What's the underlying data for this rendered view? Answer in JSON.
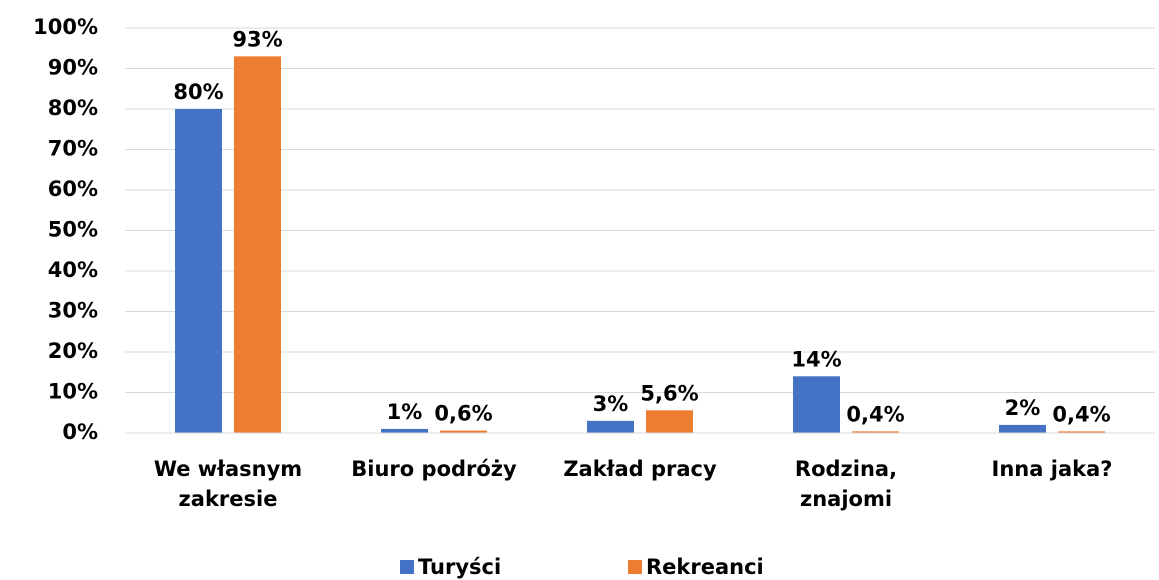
{
  "chart_data": {
    "type": "bar",
    "categories": [
      "We własnym zakresie",
      "Biuro podróży",
      "Zakład pracy",
      "Rodzina, znajomi",
      "Inna jaka?"
    ],
    "series": [
      {
        "name": "Turyści",
        "color": "#4472c4",
        "values": [
          80,
          1,
          3,
          14,
          2
        ],
        "value_labels": [
          "80%",
          "1%",
          "3%",
          "14%",
          "2%"
        ]
      },
      {
        "name": "Rekreanci",
        "color": "#ed7d31",
        "values": [
          93,
          0.6,
          5.6,
          0.4,
          0.4
        ],
        "value_labels": [
          "93%",
          "0,6%",
          "5,6%",
          "0,4%",
          "0,4%"
        ]
      }
    ],
    "ylim": [
      0,
      100
    ],
    "yticks": [
      {
        "value": 0,
        "label": "0%"
      },
      {
        "value": 10,
        "label": "10%"
      },
      {
        "value": 20,
        "label": "20%"
      },
      {
        "value": 30,
        "label": "30%"
      },
      {
        "value": 40,
        "label": "40%"
      },
      {
        "value": 50,
        "label": "50%"
      },
      {
        "value": 60,
        "label": "60%"
      },
      {
        "value": 70,
        "label": "70%"
      },
      {
        "value": 80,
        "label": "80%"
      },
      {
        "value": 90,
        "label": "90%"
      },
      {
        "value": 100,
        "label": "100%"
      }
    ],
    "grid": true,
    "legend": "bottom"
  }
}
